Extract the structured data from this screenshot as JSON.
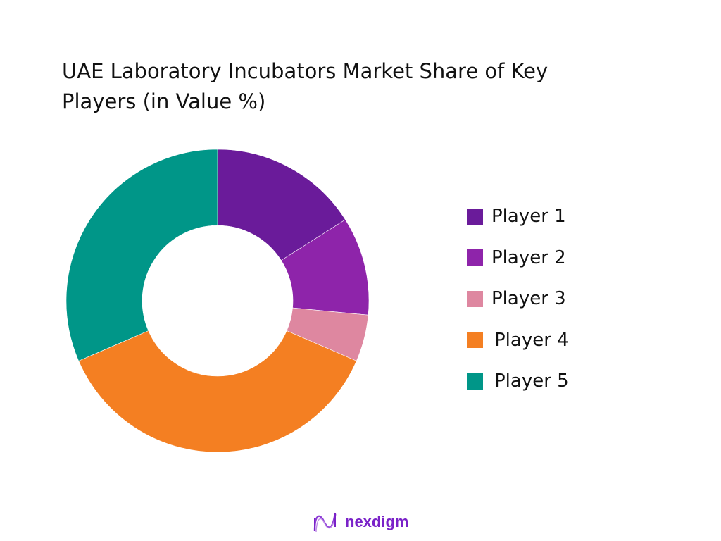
{
  "chart_data": {
    "type": "pie",
    "variant": "donut",
    "title": "UAE Laboratory Incubators Market Share of Key Players (in Value %)",
    "categories": [
      "Player 1",
      "Player 2",
      "Player 3",
      "Player 4",
      "Player 5"
    ],
    "values": [
      16,
      10.5,
      5,
      37,
      31.5
    ],
    "unit": "%",
    "colors": [
      "#6a1b9a",
      "#8e24aa",
      "#de87a0",
      "#f47f22",
      "#009688"
    ],
    "start_angle": "top, clockwise",
    "legend_position": "right",
    "data_labels": false
  },
  "title_line1": "UAE Laboratory Incubators Market Share of Key",
  "title_line2": "Players (in Value %)",
  "legend": [
    {
      "label": "Player 1",
      "color": "#6a1b9a"
    },
    {
      "label": "Player 2",
      "color": "#8e24aa"
    },
    {
      "label": "Player 3",
      "color": "#de87a0"
    },
    {
      "label": "Player 4",
      "color": "#f47f22"
    },
    {
      "label": "Player 5",
      "color": "#009688"
    }
  ],
  "branding": {
    "logo_text": "nexdigm",
    "logo_color": "#7a22c8"
  }
}
